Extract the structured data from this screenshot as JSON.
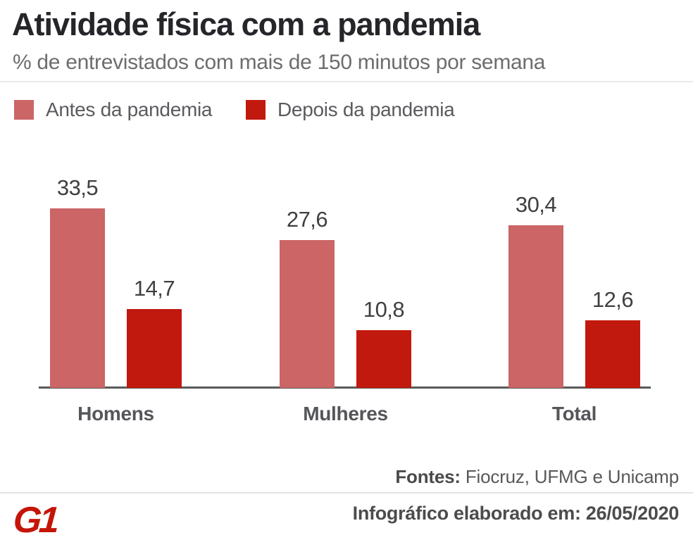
{
  "header": {
    "title": "Atividade física com a pandemia",
    "subtitle": "% de entrevistados com mais de 150 minutos por semana"
  },
  "legend": [
    {
      "label": "Antes da pandemia",
      "color": "#cb6566"
    },
    {
      "label": "Depois da pandemia",
      "color": "#c2190e"
    }
  ],
  "chart_data": {
    "type": "bar",
    "title": "Atividade física com a pandemia",
    "subtitle": "% de entrevistados com mais de 150 minutos por semana",
    "categories": [
      "Homens",
      "Mulheres",
      "Total"
    ],
    "series": [
      {
        "name": "Antes da pandemia",
        "color": "#cb6566",
        "values": [
          33.5,
          27.6,
          30.4
        ]
      },
      {
        "name": "Depois da pandemia",
        "color": "#c2190e",
        "values": [
          14.7,
          10.8,
          12.6
        ]
      }
    ],
    "value_labels": [
      [
        "33,5",
        "14,7"
      ],
      [
        "27,6",
        "10,8"
      ],
      [
        "30,4",
        "12,6"
      ]
    ],
    "ylim": [
      0,
      35
    ],
    "xlabel": "",
    "ylabel": "",
    "grid": false,
    "legend_position": "top",
    "axis_color": "#5a5a5a"
  },
  "footer": {
    "sources_label": "Fontes:",
    "sources_text": "Fiocruz, UFMG e Unicamp",
    "credit": "Infográfico elaborado em: 26/05/2020",
    "logo_text": "G1",
    "logo_color": "#c41508"
  }
}
